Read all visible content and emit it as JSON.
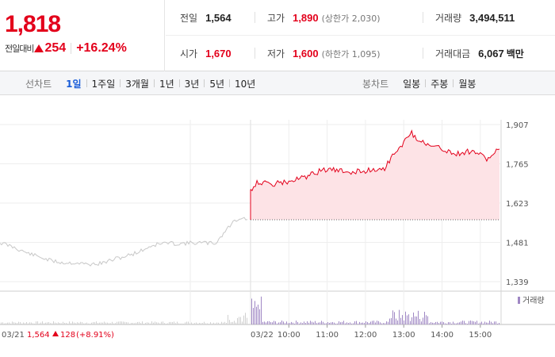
{
  "summary": {
    "price": "1,818",
    "change_label": "전일대비",
    "change_value": "254",
    "change_pct": "+16.24%",
    "prev_close_label": "전일",
    "prev_close": "1,564",
    "high_label": "고가",
    "high": "1,890",
    "upper_limit": "(상한가 2,030)",
    "volume_label": "거래량",
    "volume": "3,494,511",
    "open_label": "시가",
    "open": "1,670",
    "low_label": "저가",
    "low": "1,600",
    "lower_limit": "(하한가 1,095)",
    "amount_label": "거래대금",
    "amount": "6,067",
    "amount_unit": "백만"
  },
  "period_bar": {
    "line_title": "선차트",
    "line_items": [
      "1일",
      "1주일",
      "3개월",
      "1년",
      "3년",
      "5년",
      "10년"
    ],
    "active_item": "1일",
    "candle_title": "봉차트",
    "candle_items": [
      "일봉",
      "주봉",
      "월봉"
    ]
  },
  "colors": {
    "up": "#e3001b",
    "down": "#1a5dd8",
    "prev_day_line": "#c8c8c8",
    "fill": "#fde3e6",
    "volume_today": "#9f87c4",
    "volume_prev": "#d0d0d0"
  },
  "chart_data": {
    "type": "line",
    "y_ticks": [
      "1,907",
      "1,765",
      "1,623",
      "1,481",
      "1,339"
    ],
    "y_range": [
      1339,
      1907
    ],
    "x_ticks": [
      "03/22",
      "10:00",
      "11:00",
      "12:00",
      "13:00",
      "14:00",
      "15:00"
    ],
    "prev_day_label": "03/21",
    "prev_day_close": "1,564",
    "prev_day_change": "128",
    "prev_day_change_pct": "(+8.91%)",
    "volume_legend": "거래량",
    "series": [
      {
        "name": "03/21",
        "x": [
          "09:00",
          "09:20",
          "09:40",
          "10:00",
          "10:20",
          "10:40",
          "11:00",
          "11:20",
          "11:40",
          "12:00",
          "12:20",
          "12:40",
          "13:00",
          "13:20",
          "13:40",
          "14:00",
          "14:20",
          "14:40",
          "15:00",
          "15:10",
          "15:20",
          "15:30"
        ],
        "values": [
          1480,
          1465,
          1445,
          1430,
          1415,
          1407,
          1407,
          1401,
          1405,
          1420,
          1432,
          1448,
          1470,
          1479,
          1476,
          1479,
          1479,
          1478,
          1535,
          1560,
          1570,
          1564
        ]
      },
      {
        "name": "03/22",
        "x": [
          "09:00",
          "09:10",
          "09:30",
          "10:00",
          "10:30",
          "10:50",
          "11:00",
          "11:30",
          "12:00",
          "12:30",
          "12:50",
          "13:00",
          "13:10",
          "13:20",
          "13:40",
          "14:00",
          "14:20",
          "14:40",
          "14:50",
          "15:00",
          "15:10",
          "15:20",
          "15:30"
        ],
        "values": [
          1670,
          1700,
          1690,
          1700,
          1720,
          1740,
          1745,
          1735,
          1740,
          1750,
          1820,
          1840,
          1880,
          1860,
          1830,
          1820,
          1800,
          1810,
          1810,
          1800,
          1780,
          1800,
          1818
        ]
      }
    ],
    "volume_note": "per-minute volume bars for 03/21 and 03/22"
  }
}
